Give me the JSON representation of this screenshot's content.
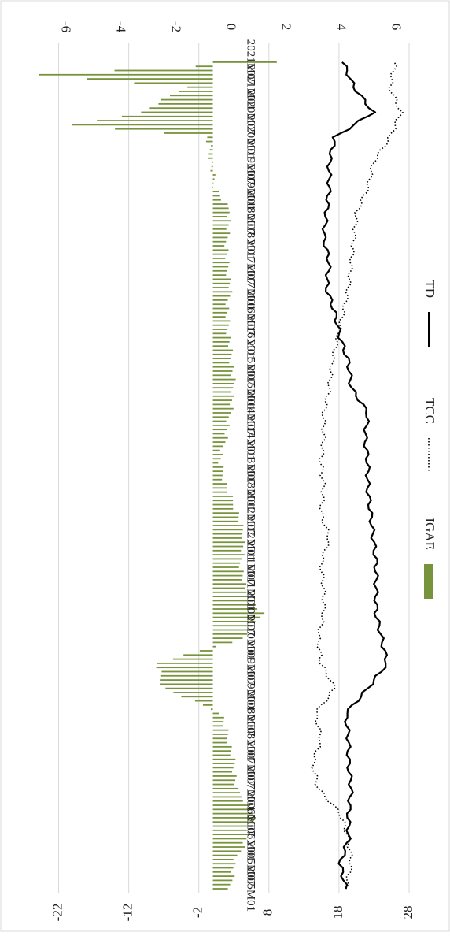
{
  "chart_data": {
    "type": "bar+line",
    "orientation": "rotated-90-clockwise",
    "x_ticks": [
      "2005M01",
      "2005M07",
      "2006M01",
      "2006M07",
      "2007M01",
      "2007M07",
      "2008M01",
      "2008M07",
      "2009M01",
      "2009M07",
      "2010M01",
      "2010M07",
      "2011M01",
      "2011M07",
      "2012M01",
      "2012M07",
      "2013M01",
      "2013M07",
      "2014M01",
      "2014M07",
      "2015M01",
      "2015M07",
      "2016M01",
      "2016M07",
      "2017M01",
      "2017M07",
      "2018M01",
      "2018M07",
      "2019M01",
      "2019M07",
      "2020M01",
      "2020M07",
      "2021M01",
      "2021M07"
    ],
    "left_axis": {
      "ticks": [
        28,
        18,
        8,
        -2,
        -12,
        -22
      ],
      "range": [
        -27,
        28
      ],
      "grid": true
    },
    "right_axis": {
      "ticks": [
        6,
        4,
        2,
        0,
        -2,
        -4,
        -6
      ],
      "range": [
        -7.5,
        6.5
      ]
    },
    "series": [
      {
        "name": "IGAE",
        "kind": "bar",
        "axis": "left",
        "color": "#77933c",
        "points": [
          [
            "2005M01",
            2.5
          ],
          [
            "2005M07",
            3.0
          ],
          [
            "2006M01",
            4.8
          ],
          [
            "2006M07",
            6.0
          ],
          [
            "2007M01",
            3.3
          ],
          [
            "2007M07",
            3.0
          ],
          [
            "2008M01",
            2.2
          ],
          [
            "2008M07",
            1.2
          ],
          [
            "2009M01",
            -7.0
          ],
          [
            "2009M07",
            -8.0
          ],
          [
            "2010M01",
            4.5
          ],
          [
            "2010M07",
            7.0
          ],
          [
            "2011M01",
            4.5
          ],
          [
            "2011M07",
            4.0
          ],
          [
            "2012M01",
            4.5
          ],
          [
            "2012M07",
            3.5
          ],
          [
            "2013M01",
            2.0
          ],
          [
            "2013M07",
            1.0
          ],
          [
            "2014M01",
            1.8
          ],
          [
            "2014M07",
            2.5
          ],
          [
            "2015M01",
            3.0
          ],
          [
            "2015M07",
            2.7
          ],
          [
            "2016M01",
            2.3
          ],
          [
            "2016M07",
            2.0
          ],
          [
            "2017M01",
            2.5
          ],
          [
            "2017M07",
            2.0
          ],
          [
            "2018M01",
            2.0
          ],
          [
            "2018M07",
            2.5
          ],
          [
            "2019M01",
            0.3
          ],
          [
            "2019M07",
            -0.3
          ],
          [
            "2020M01",
            -0.8
          ],
          [
            "2020M04",
            -20.0
          ],
          [
            "2020M07",
            -10.0
          ],
          [
            "2021M01",
            -4.0
          ],
          [
            "2021M04",
            -25.0
          ],
          [
            "2021M07",
            9.0
          ]
        ]
      },
      {
        "name": "TCC",
        "kind": "line-dotted",
        "axis": "right",
        "color": "#000000",
        "points": [
          [
            "2005M01",
            4.2
          ],
          [
            "2005M07",
            4.4
          ],
          [
            "2006M01",
            4.3
          ],
          [
            "2006M07",
            4.0
          ],
          [
            "2007M01",
            3.2
          ],
          [
            "2007M07",
            3.0
          ],
          [
            "2008M01",
            3.3
          ],
          [
            "2008M07",
            3.1
          ],
          [
            "2009M01",
            3.8
          ],
          [
            "2009M07",
            3.3
          ],
          [
            "2010M01",
            3.2
          ],
          [
            "2010M07",
            3.4
          ],
          [
            "2011M01",
            3.4
          ],
          [
            "2011M07",
            3.3
          ],
          [
            "2012M01",
            3.6
          ],
          [
            "2012M07",
            3.3
          ],
          [
            "2013M01",
            3.4
          ],
          [
            "2013M07",
            3.3
          ],
          [
            "2014M01",
            3.4
          ],
          [
            "2014M07",
            3.4
          ],
          [
            "2015M01",
            3.6
          ],
          [
            "2015M07",
            3.7
          ],
          [
            "2016M01",
            3.9
          ],
          [
            "2016M07",
            4.1
          ],
          [
            "2017M01",
            4.3
          ],
          [
            "2017M07",
            4.4
          ],
          [
            "2018M01",
            4.5
          ],
          [
            "2018M07",
            4.6
          ],
          [
            "2019M01",
            5.0
          ],
          [
            "2019M07",
            5.2
          ],
          [
            "2020M01",
            5.8
          ],
          [
            "2020M07",
            6.2
          ],
          [
            "2021M01",
            5.8
          ],
          [
            "2021M07",
            6.0
          ]
        ]
      },
      {
        "name": "TD",
        "kind": "line-solid",
        "axis": "right",
        "color": "#000000",
        "points": [
          [
            "2005M01",
            4.2
          ],
          [
            "2005M07",
            4.0
          ],
          [
            "2006M01",
            4.3
          ],
          [
            "2006M07",
            4.3
          ],
          [
            "2007M01",
            4.4
          ],
          [
            "2007M07",
            4.3
          ],
          [
            "2008M01",
            4.3
          ],
          [
            "2008M07",
            4.2
          ],
          [
            "2009M01",
            5.0
          ],
          [
            "2009M07",
            5.7
          ],
          [
            "2010M01",
            5.5
          ],
          [
            "2010M07",
            5.3
          ],
          [
            "2011M01",
            5.3
          ],
          [
            "2011M07",
            5.3
          ],
          [
            "2012M01",
            5.2
          ],
          [
            "2012M07",
            5.1
          ],
          [
            "2013M01",
            5.0
          ],
          [
            "2013M07",
            5.0
          ],
          [
            "2014M01",
            4.9
          ],
          [
            "2014M07",
            5.0
          ],
          [
            "2015M01",
            4.4
          ],
          [
            "2015M07",
            4.3
          ],
          [
            "2016M01",
            4.0
          ],
          [
            "2016M07",
            3.8
          ],
          [
            "2017M01",
            3.5
          ],
          [
            "2017M07",
            3.6
          ],
          [
            "2018M01",
            3.4
          ],
          [
            "2018M07",
            3.5
          ],
          [
            "2019M01",
            3.6
          ],
          [
            "2019M07",
            3.6
          ],
          [
            "2020M01",
            3.8
          ],
          [
            "2020M07",
            5.2
          ],
          [
            "2021M01",
            4.5
          ],
          [
            "2021M07",
            4.1
          ]
        ]
      }
    ],
    "legend": {
      "placement": "bottom",
      "entries": [
        {
          "label": "IGAE",
          "style": "bar"
        },
        {
          "label": "TCC",
          "style": "dotted"
        },
        {
          "label": "TD",
          "style": "solid"
        }
      ]
    }
  }
}
